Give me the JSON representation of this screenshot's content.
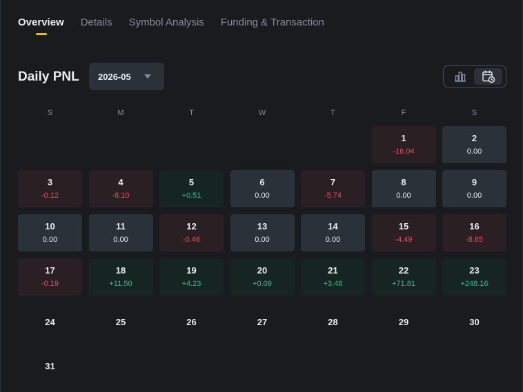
{
  "tabs": [
    {
      "label": "Overview",
      "active": true
    },
    {
      "label": "Details",
      "active": false
    },
    {
      "label": "Symbol Analysis",
      "active": false
    },
    {
      "label": "Funding & Transaction",
      "active": false
    }
  ],
  "section_title": "Daily PNL",
  "month_select": {
    "value": "2026-05"
  },
  "view_toggle": [
    {
      "icon": "bar-chart-icon",
      "active": false
    },
    {
      "icon": "calendar-icon",
      "active": true
    }
  ],
  "colors": {
    "accent": "#f0b90b",
    "positive": "#2ebd85",
    "negative": "#f6465d"
  },
  "weekdays": [
    "S",
    "M",
    "T",
    "W",
    "T",
    "F",
    "S"
  ],
  "calendar": {
    "leading_blank_days": 5,
    "days": [
      {
        "day": "1",
        "pnl": "-16.04",
        "status": "neg"
      },
      {
        "day": "2",
        "pnl": "0.00",
        "status": "zero"
      },
      {
        "day": "3",
        "pnl": "-0.12",
        "status": "neg"
      },
      {
        "day": "4",
        "pnl": "-8.10",
        "status": "neg"
      },
      {
        "day": "5",
        "pnl": "+0.51",
        "status": "pos"
      },
      {
        "day": "6",
        "pnl": "0.00",
        "status": "zero"
      },
      {
        "day": "7",
        "pnl": "-5.74",
        "status": "neg"
      },
      {
        "day": "8",
        "pnl": "0.00",
        "status": "zero"
      },
      {
        "day": "9",
        "pnl": "0.00",
        "status": "zero"
      },
      {
        "day": "10",
        "pnl": "0.00",
        "status": "zero"
      },
      {
        "day": "11",
        "pnl": "0.00",
        "status": "zero"
      },
      {
        "day": "12",
        "pnl": "-0.46",
        "status": "neg"
      },
      {
        "day": "13",
        "pnl": "0.00",
        "status": "zero"
      },
      {
        "day": "14",
        "pnl": "0.00",
        "status": "zero"
      },
      {
        "day": "15",
        "pnl": "-4.49",
        "status": "neg"
      },
      {
        "day": "16",
        "pnl": "-8.65",
        "status": "neg"
      },
      {
        "day": "17",
        "pnl": "-0.19",
        "status": "neg"
      },
      {
        "day": "18",
        "pnl": "+11.50",
        "status": "pos"
      },
      {
        "day": "19",
        "pnl": "+4.23",
        "status": "pos"
      },
      {
        "day": "20",
        "pnl": "+0.09",
        "status": "pos"
      },
      {
        "day": "21",
        "pnl": "+3.48",
        "status": "pos"
      },
      {
        "day": "22",
        "pnl": "+71.81",
        "status": "pos"
      },
      {
        "day": "23",
        "pnl": "+248.16",
        "status": "pos"
      },
      {
        "day": "24",
        "pnl": "",
        "status": "none"
      },
      {
        "day": "25",
        "pnl": "",
        "status": "none"
      },
      {
        "day": "26",
        "pnl": "",
        "status": "none"
      },
      {
        "day": "27",
        "pnl": "",
        "status": "none"
      },
      {
        "day": "28",
        "pnl": "",
        "status": "none"
      },
      {
        "day": "29",
        "pnl": "",
        "status": "none"
      },
      {
        "day": "30",
        "pnl": "",
        "status": "none"
      },
      {
        "day": "31",
        "pnl": "",
        "status": "none"
      }
    ]
  }
}
